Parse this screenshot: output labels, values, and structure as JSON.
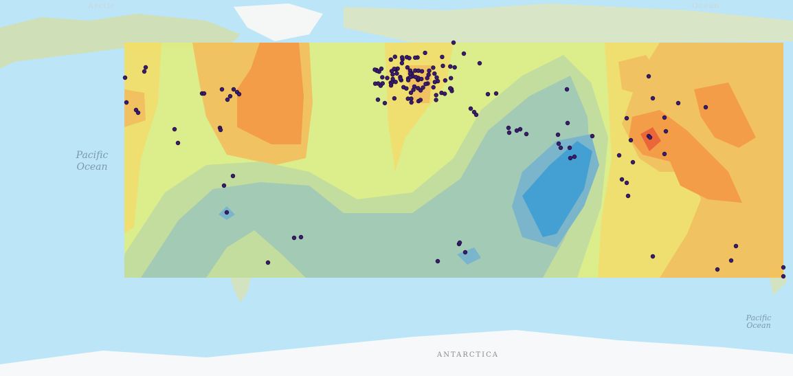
{
  "labels": [
    "Arctic",
    "Ocean",
    "Pacific Ocean",
    "Pacific Ocean",
    "ANTARCTICA"
  ]
}
